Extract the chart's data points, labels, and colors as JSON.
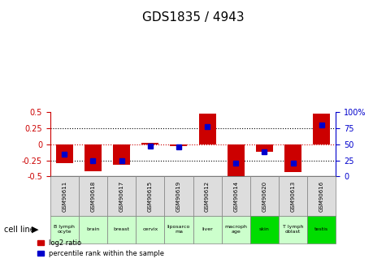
{
  "title": "GDS1835 / 4943",
  "samples": [
    "GSM90611",
    "GSM90618",
    "GSM90617",
    "GSM90615",
    "GSM90619",
    "GSM90612",
    "GSM90614",
    "GSM90620",
    "GSM90613",
    "GSM90616"
  ],
  "cell_lines": [
    "B lymph\nocyte",
    "brain",
    "breast",
    "cervix",
    "liposarco\nma",
    "liver",
    "macroph\nage",
    "skin",
    "T lymph\noblast",
    "testis"
  ],
  "cell_line_colors": [
    "#ccffcc",
    "#ccffcc",
    "#ccffcc",
    "#ccffcc",
    "#ccffcc",
    "#ccffcc",
    "#ccffcc",
    "#00dd00",
    "#ccffcc",
    "#00dd00"
  ],
  "log2_ratio": [
    -0.3,
    -0.42,
    -0.32,
    0.02,
    -0.03,
    0.47,
    -0.53,
    -0.12,
    -0.43,
    0.48
  ],
  "percentile_rank": [
    35,
    24,
    25,
    47,
    46,
    77,
    20,
    38,
    20,
    80
  ],
  "ylim": [
    -0.5,
    0.5
  ],
  "yticks_left": [
    -0.5,
    -0.25,
    0.0,
    0.25,
    0.5
  ],
  "yticks_right": [
    0,
    25,
    50,
    75,
    100
  ],
  "bar_color": "#cc0000",
  "dot_color": "#0000cc",
  "bar_width": 0.6,
  "legend_red_label": "log2 ratio",
  "legend_blue_label": "percentile rank within the sample"
}
